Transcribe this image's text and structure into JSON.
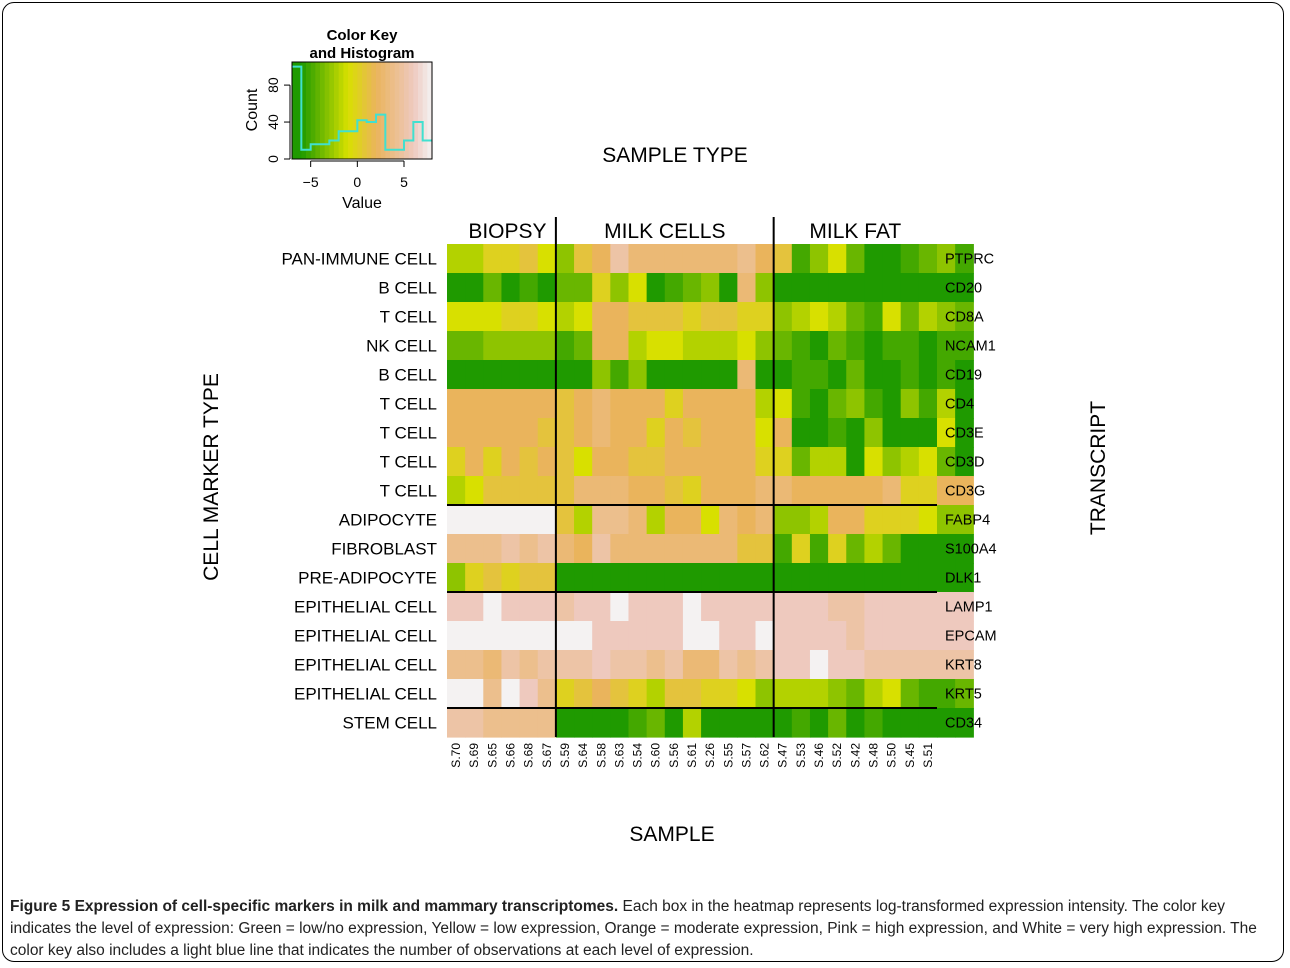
{
  "chart_data": {
    "type": "heatmap",
    "title": "SAMPLE TYPE",
    "xlabel": "SAMPLE",
    "ylabel_left": "CELL MARKER TYPE",
    "ylabel_right": "TRANSCRIPT",
    "groups": [
      {
        "name": "BIOPSY",
        "samples": [
          "S.70",
          "S.69",
          "S.65",
          "S.66",
          "S.68",
          "S.67"
        ]
      },
      {
        "name": "MILK CELLS",
        "samples": [
          "S.59",
          "S.64",
          "S.58",
          "S.63",
          "S.54",
          "S.60",
          "S.56",
          "S.61",
          "S.26",
          "S.55",
          "S.57",
          "S.62"
        ]
      },
      {
        "name": "MILK FAT",
        "samples": [
          "S.47",
          "S.53",
          "S.46",
          "S.52",
          "S.42",
          "S.48",
          "S.50",
          "S.45",
          "S.51"
        ]
      }
    ],
    "row_groups": [
      9,
      3,
      4,
      1
    ],
    "rows": [
      {
        "cell_type": "PAN-IMMUNE CELL",
        "transcript": "PTPRC",
        "values": [
          -2,
          -2,
          0,
          0,
          1,
          -1,
          -3,
          1,
          2,
          5,
          3,
          3,
          3,
          3,
          3,
          3,
          4,
          2,
          1,
          -5,
          -3,
          -1,
          -4,
          -6,
          -6,
          -5,
          -4,
          -3,
          -5
        ]
      },
      {
        "cell_type": "B CELL",
        "transcript": "CD20",
        "values": [
          -6,
          -6,
          -4,
          -6,
          -5,
          -6,
          -4,
          -4,
          0,
          -3,
          -1,
          -6,
          -5,
          -4,
          -3,
          -6,
          3,
          -3,
          -6,
          -6,
          -6,
          -6,
          -6,
          -6,
          -6,
          -6,
          -6,
          -6,
          -6
        ]
      },
      {
        "cell_type": "T CELL",
        "transcript": "CD8A",
        "values": [
          -1,
          -1,
          -1,
          0,
          0,
          -1,
          -2,
          -1,
          2,
          2,
          1,
          1,
          1,
          0,
          1,
          1,
          0,
          0,
          -3,
          -2,
          -1,
          -2,
          -4,
          -5,
          -1,
          -4,
          -2,
          -3,
          -4
        ]
      },
      {
        "cell_type": "NK CELL",
        "transcript": "NCAM1",
        "values": [
          -4,
          -4,
          -3,
          -3,
          -3,
          -3,
          -5,
          -4,
          2,
          2,
          -2,
          -1,
          -1,
          -2,
          -2,
          -2,
          -1,
          -3,
          -4,
          -5,
          -6,
          -4,
          -5,
          -6,
          -5,
          -5,
          -6,
          -5,
          -5
        ]
      },
      {
        "cell_type": "B CELL",
        "transcript": "CD19",
        "values": [
          -6,
          -6,
          -6,
          -6,
          -6,
          -6,
          -6,
          -6,
          -3,
          -5,
          -3,
          -6,
          -6,
          -6,
          -6,
          -6,
          3,
          -6,
          -6,
          -5,
          -5,
          -6,
          -4,
          -6,
          -6,
          -5,
          -6,
          -5,
          -6
        ]
      },
      {
        "cell_type": "T CELL",
        "transcript": "CD4",
        "values": [
          2,
          2,
          2,
          2,
          2,
          2,
          1,
          2,
          3,
          2,
          2,
          2,
          0,
          2,
          2,
          2,
          2,
          -2,
          -1,
          -5,
          -6,
          -4,
          -3,
          -5,
          -6,
          -3,
          -5,
          -2,
          -6
        ]
      },
      {
        "cell_type": "T CELL",
        "transcript": "CD3E",
        "values": [
          2,
          2,
          2,
          2,
          2,
          1,
          1,
          2,
          3,
          2,
          2,
          0,
          2,
          1,
          2,
          2,
          2,
          -1,
          2,
          -6,
          -6,
          -5,
          -6,
          -3,
          -6,
          -6,
          -6,
          -1,
          -6
        ]
      },
      {
        "cell_type": "T CELL",
        "transcript": "CD3D",
        "values": [
          0,
          2,
          0,
          2,
          1,
          2,
          1,
          -1,
          2,
          2,
          1,
          1,
          2,
          2,
          2,
          2,
          2,
          0,
          0,
          -4,
          -2,
          -2,
          -6,
          -1,
          -3,
          -2,
          -1,
          -4,
          -6
        ]
      },
      {
        "cell_type": "T CELL",
        "transcript": "CD3G",
        "values": [
          -2,
          -1,
          1,
          1,
          1,
          1,
          1,
          3,
          3,
          3,
          2,
          2,
          1,
          0,
          2,
          2,
          2,
          3,
          3,
          2,
          2,
          2,
          2,
          2,
          3,
          0,
          0,
          2,
          2
        ]
      },
      {
        "cell_type": "ADIPOCYTE",
        "transcript": "FABP4",
        "values": [
          8,
          8,
          8,
          8,
          8,
          8,
          1,
          -2,
          4,
          4,
          3,
          -2,
          2,
          2,
          -1,
          3,
          2,
          3,
          -3,
          -3,
          -2,
          2,
          2,
          0,
          0,
          0,
          -1,
          -3,
          -3
        ]
      },
      {
        "cell_type": "FIBROBLAST",
        "transcript": "S100A4",
        "values": [
          4,
          4,
          4,
          5,
          4,
          5,
          3,
          2,
          5,
          3,
          3,
          3,
          3,
          3,
          3,
          3,
          1,
          1,
          -5,
          0,
          -5,
          0,
          -4,
          -2,
          -4,
          -6,
          -6,
          -6,
          -6
        ]
      },
      {
        "cell_type": "PRE-ADIPOCYTE",
        "transcript": "DLK1",
        "values": [
          -3,
          0,
          1,
          0,
          1,
          1,
          -6,
          -6,
          -6,
          -6,
          -6,
          -6,
          -6,
          -6,
          -6,
          -6,
          -6,
          -6,
          -6,
          -6,
          -6,
          -6,
          -6,
          -6,
          -6,
          -6,
          -6,
          -6,
          -6
        ]
      },
      {
        "cell_type": "EPITHELIAL CELL",
        "transcript": "LAMP1",
        "values": [
          6,
          6,
          8,
          6,
          6,
          6,
          5,
          6,
          6,
          8,
          6,
          6,
          6,
          8,
          6,
          6,
          6,
          6,
          6,
          6,
          6,
          5,
          5,
          6,
          6,
          6,
          6,
          6,
          6
        ]
      },
      {
        "cell_type": "EPITHELIAL CELL",
        "transcript": "EPCAM",
        "values": [
          8,
          8,
          8,
          8,
          8,
          8,
          8,
          8,
          6,
          6,
          6,
          6,
          6,
          8,
          8,
          6,
          6,
          8,
          6,
          6,
          6,
          6,
          5,
          6,
          6,
          6,
          6,
          6,
          6
        ]
      },
      {
        "cell_type": "EPITHELIAL CELL",
        "transcript": "KRT8",
        "values": [
          4,
          4,
          3,
          5,
          4,
          5,
          5,
          5,
          6,
          5,
          5,
          4,
          5,
          3,
          3,
          5,
          4,
          5,
          6,
          6,
          8,
          6,
          6,
          5,
          5,
          5,
          5,
          5,
          5
        ]
      },
      {
        "cell_type": "EPITHELIAL CELL",
        "transcript": "KRT5",
        "values": [
          8,
          8,
          4,
          8,
          6,
          4,
          0,
          1,
          2,
          1,
          0,
          -2,
          1,
          1,
          0,
          0,
          -1,
          -3,
          -2,
          -2,
          -2,
          -3,
          -4,
          -2,
          -1,
          -4,
          -5,
          -5,
          -4
        ]
      },
      {
        "cell_type": "STEM CELL",
        "transcript": "CD34",
        "values": [
          5,
          5,
          4,
          4,
          4,
          4,
          -6,
          -6,
          -6,
          -6,
          -5,
          -4,
          -6,
          -2,
          -6,
          -6,
          -6,
          -6,
          -6,
          -5,
          -6,
          -4,
          -6,
          -5,
          -6,
          -6,
          -6,
          -6,
          -6
        ]
      }
    ],
    "color_key": {
      "title": "Color Key\nand Histogram",
      "xlabel": "Value",
      "ylabel": "Count",
      "x_ticks": [
        "−5",
        "0",
        "5"
      ],
      "y_ticks": [
        "0",
        "40",
        "80"
      ],
      "xlim": [
        -7,
        8
      ],
      "ylim": [
        0,
        105
      ],
      "histogram_edges": [
        -7,
        -6,
        -5,
        -4,
        -3,
        -2,
        -1,
        0,
        1,
        2,
        3,
        4,
        5,
        6,
        7,
        8
      ],
      "histogram_counts": [
        100,
        10,
        16,
        16,
        20,
        30,
        30,
        42,
        40,
        48,
        10,
        10,
        20,
        40,
        20
      ],
      "histogram_color": "#40e0d0"
    },
    "colors": {
      "low": "#1f9a00",
      "mid_low": "#d8e000",
      "mid": "#eab45c",
      "high": "#eec9be",
      "very_high": "#f4f2f2",
      "divider": "#000000"
    }
  },
  "caption": {
    "label": "Figure 5 Expression of cell-specific markers in milk and mammary transcriptomes.",
    "text": " Each box in the heatmap represents log-transformed expression intensity. The color key indicates the level of expression: Green = low/no expression, Yellow = low expression, Orange = moderate expression, Pink = high expression, and White = very high expression. The color key also includes a light blue line that indicates the number of observations at each level of expression."
  }
}
